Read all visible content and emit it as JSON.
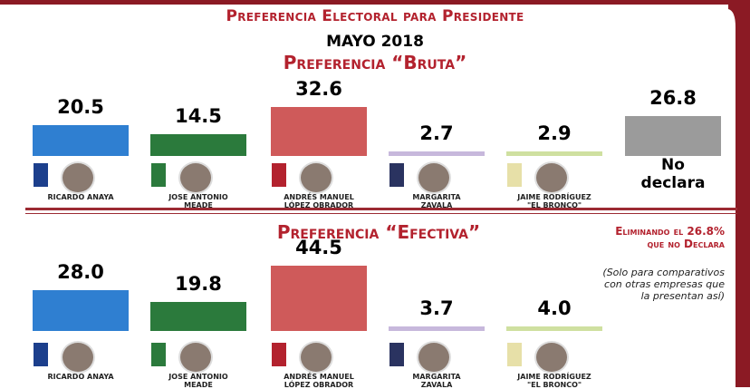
{
  "title": "Preferencia Electoral para Presidente",
  "subtitle": "MAYO 2018",
  "colors": {
    "anaya": "#2f7fd1",
    "meade": "#2b7a3c",
    "amlo": "#cf5a5a",
    "zavala": "#c7b8dc",
    "bronco": "#cfe0a0",
    "no_declara": "#9b9b9b",
    "accent": "#b3222e"
  },
  "candidates": [
    {
      "name": "RICARDO ANAYA",
      "name2": ""
    },
    {
      "name": "JOSE ANTONIO",
      "name2": "MEADE"
    },
    {
      "name": "ANDRÉS MANUEL",
      "name2": "LÓPEZ OBRADOR"
    },
    {
      "name": "MARGARITA",
      "name2": "ZAVALA"
    },
    {
      "name": "JAIME RODRÍGUEZ",
      "name2": "\"EL BRONCO\""
    }
  ],
  "chart_data": [
    {
      "type": "bar",
      "title": "Preferencia “Bruta”",
      "categories": [
        "RICARDO ANAYA",
        "JOSE ANTONIO MEADE",
        "ANDRÉS MANUEL LÓPEZ OBRADOR",
        "MARGARITA ZAVALA",
        "JAIME RODRÍGUEZ \"EL BRONCO\"",
        "No declara"
      ],
      "values": [
        20.5,
        14.5,
        32.6,
        2.7,
        2.9,
        26.8
      ],
      "value_labels": [
        "20.5",
        "14.5",
        "32.6",
        "2.7",
        "2.9",
        "26.8"
      ],
      "ylim": [
        0,
        32.6
      ]
    },
    {
      "type": "bar",
      "title": "Preferencia “Efectiva”",
      "categories": [
        "RICARDO ANAYA",
        "JOSE ANTONIO MEADE",
        "ANDRÉS MANUEL LÓPEZ OBRADOR",
        "MARGARITA ZAVALA",
        "JAIME RODRÍGUEZ \"EL BRONCO\""
      ],
      "values": [
        28.0,
        19.8,
        44.5,
        3.7,
        4.0
      ],
      "value_labels": [
        "28.0",
        "19.8",
        "44.5",
        "3.7",
        "4.0"
      ],
      "ylim": [
        0,
        44.5
      ]
    }
  ],
  "no_declara": {
    "line1": "No",
    "line2": "declara"
  },
  "note": {
    "line1": "Eliminando el 26.8%",
    "line2": "que no Declara"
  },
  "note2": {
    "line1": "(Solo para comparativos",
    "line2": "con otras empresas que",
    "line3": "la presentan así)"
  }
}
